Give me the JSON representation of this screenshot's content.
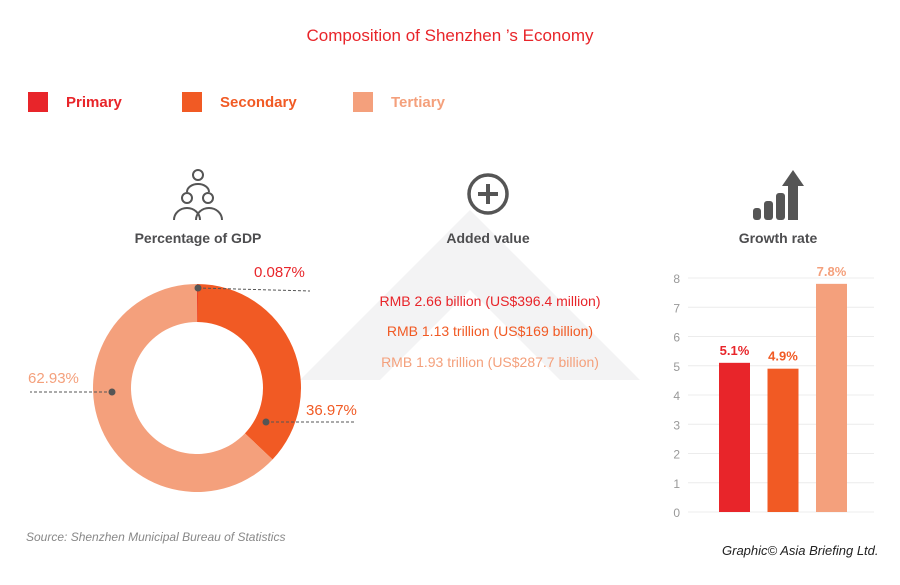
{
  "title": "Composition of Shenzhen ’s Economy",
  "legend": [
    {
      "label": "Primary",
      "color": "#e8252a"
    },
    {
      "label": "Secondary",
      "color": "#f15a24"
    },
    {
      "label": "Tertiary",
      "color": "#f4a07c"
    }
  ],
  "sections": {
    "gdp": "Percentage of GDP",
    "added": "Added value",
    "growth": "Growth rate"
  },
  "added_values": [
    "RMB 2.66 billion (US$396.4 million)",
    "RMB 1.13 trillion (US$169 billion)",
    "RMB 1.93 trillion (US$287.7 billion)"
  ],
  "source": "Source: Shenzhen Municipal Bureau of Statistics",
  "credit": "Graphic© Asia Briefing Ltd.",
  "chart_data": [
    {
      "type": "pie",
      "categories": [
        "Primary",
        "Secondary",
        "Tertiary"
      ],
      "values": [
        0.087,
        36.97,
        62.93
      ],
      "labels": [
        "0.087%",
        "36.97%",
        "62.93%"
      ],
      "donut": true
    },
    {
      "type": "bar",
      "categories": [
        "Primary",
        "Secondary",
        "Tertiary"
      ],
      "values": [
        5.1,
        4.9,
        7.8
      ],
      "labels": [
        "5.1%",
        "4.9%",
        "7.8%"
      ],
      "ylim": [
        0,
        8
      ],
      "yticks": [
        "0",
        "1",
        "2",
        "3",
        "4",
        "5",
        "6",
        "7",
        "8"
      ],
      "grid": true
    }
  ]
}
